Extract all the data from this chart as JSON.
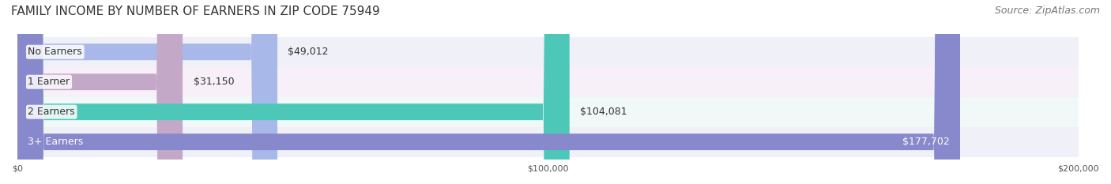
{
  "title": "FAMILY INCOME BY NUMBER OF EARNERS IN ZIP CODE 75949",
  "source": "Source: ZipAtlas.com",
  "categories": [
    "No Earners",
    "1 Earner",
    "2 Earners",
    "3+ Earners"
  ],
  "values": [
    49012,
    31150,
    104081,
    177702
  ],
  "value_labels": [
    "$49,012",
    "$31,150",
    "$104,081",
    "$177,702"
  ],
  "bar_colors": [
    "#a8b8e8",
    "#c4a8c8",
    "#4dc8b8",
    "#8888cc"
  ],
  "bar_row_colors": [
    "#f0f0f8",
    "#f8f0f8",
    "#f0f8f8",
    "#f0f0f8"
  ],
  "xlim": [
    0,
    200000
  ],
  "xticks": [
    0,
    100000,
    200000
  ],
  "xtick_labels": [
    "$0",
    "$100,000",
    "$200,000"
  ],
  "title_fontsize": 11,
  "source_fontsize": 9,
  "label_fontsize": 9,
  "value_fontsize": 9,
  "background_color": "#ffffff",
  "bar_height": 0.55,
  "fig_width": 14.06,
  "fig_height": 2.33
}
